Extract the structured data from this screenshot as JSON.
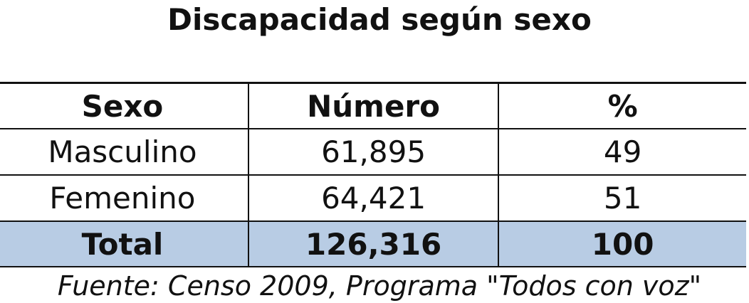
{
  "title": "Discapacidad según sexo",
  "table": {
    "headers": [
      "Sexo",
      "Número",
      "%"
    ],
    "rows": [
      [
        "Masculino",
        "61,895",
        "49"
      ],
      [
        "Femenino",
        "64,421",
        "51"
      ]
    ],
    "total": [
      "Total",
      "126,316",
      "100"
    ]
  },
  "source": "Fuente: Censo 2009, Programa \"Todos con voz\"",
  "colors": {
    "total_row_background": "#b8cce4"
  }
}
